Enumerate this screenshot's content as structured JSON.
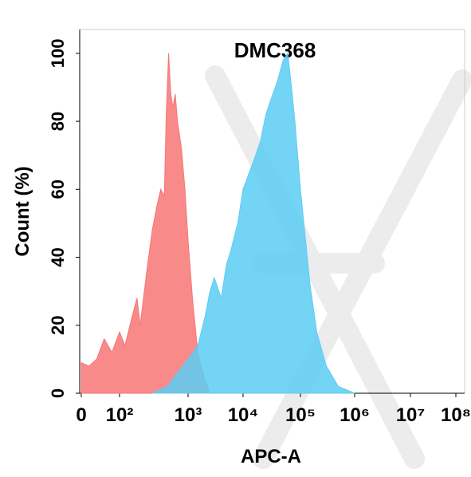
{
  "chart_data": {
    "type": "area",
    "title": "DMC368",
    "x_label": "APC-A",
    "y_label": "Count  (%)",
    "xlim": [
      0,
      100000000
    ],
    "ylim": [
      0,
      107
    ],
    "xticks": [
      0,
      {
        "value": 100,
        "label": "10²"
      },
      {
        "value": 1000,
        "label": "10³"
      },
      {
        "value": 10000,
        "label": "10⁴"
      },
      {
        "value": 100000,
        "label": "10⁵"
      },
      {
        "value": 1000000,
        "label": "10⁶"
      },
      {
        "value": 10000000,
        "label": "10⁷"
      },
      {
        "value": 100000000,
        "label": "10⁸"
      }
    ],
    "yticks": [
      0,
      20,
      40,
      60,
      80,
      100
    ],
    "series": [
      {
        "color": "#f77676",
        "x": [
          0,
          20,
          40,
          60,
          80,
          100,
          120,
          150,
          180,
          200,
          250,
          300,
          350,
          400,
          450,
          480,
          520,
          560,
          600,
          650,
          700,
          800,
          900,
          1000,
          1200,
          1500,
          2000,
          2500
        ],
        "values": [
          9,
          8,
          10,
          16,
          12,
          18,
          14,
          22,
          28,
          20,
          36,
          48,
          55,
          60,
          58,
          82,
          100,
          88,
          84,
          88,
          80,
          72,
          60,
          45,
          28,
          12,
          4,
          0
        ]
      },
      {
        "color": "#5ccdf4",
        "x": [
          300,
          500,
          700,
          1000,
          1500,
          2000,
          2500,
          3000,
          4000,
          5000,
          6000,
          8000,
          10000,
          15000,
          20000,
          25000,
          30000,
          40000,
          50000,
          60000,
          70000,
          80000,
          100000,
          150000,
          200000,
          300000,
          500000,
          1000000
        ],
        "values": [
          0,
          2,
          6,
          10,
          14,
          22,
          30,
          34,
          28,
          38,
          42,
          50,
          60,
          68,
          74,
          82,
          86,
          92,
          98,
          100,
          90,
          80,
          60,
          32,
          18,
          8,
          2,
          0
        ]
      }
    ]
  }
}
